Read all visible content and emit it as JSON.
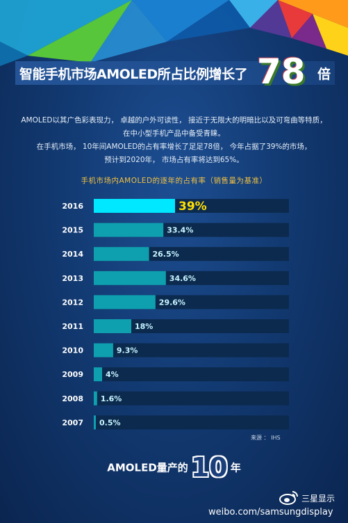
{
  "header": {
    "title_prefix": "智能手机市场AMOLED所占比例增长了",
    "title_number": "78",
    "title_suffix": "倍"
  },
  "intro_lines": [
    "AMOLED以其广色彩表现力， 卓越的户外可读性， 接近于无限大的明暗比以及可弯曲等特质，",
    "在中小型手机产品中备受青睐。",
    "在手机市场， 10年间AMOLED的占有率增长了足足78倍， 今年占据了39%的市场，",
    "预计到2020年， 市场占有率将达到65%。"
  ],
  "chart_data": {
    "type": "bar",
    "orientation": "horizontal",
    "title": "手机市场内AMOLED的逐年的占有率（销售量为基准）",
    "categories": [
      "2016",
      "2015",
      "2014",
      "2013",
      "2012",
      "2011",
      "2010",
      "2009",
      "2008",
      "2007"
    ],
    "values": [
      39,
      33.4,
      26.5,
      34.6,
      29.6,
      18,
      9.3,
      4,
      1.6,
      0.5
    ],
    "labels": [
      "39%",
      "33.4%",
      "26.5%",
      "34.6%",
      "29.6%",
      "18%",
      "9.3%",
      "4%",
      "1.6%",
      "0.5%"
    ],
    "xlim": [
      0,
      100
    ],
    "unit": "%",
    "highlight_index": 0,
    "colors": {
      "bar": "#0fa0b0",
      "highlight": "#00e8ff",
      "track": "#0c2a4e",
      "label": "#c8f6ff",
      "highlight_label": "#ffe000"
    }
  },
  "source": "来源 ： IHS",
  "footer": {
    "prefix": "AMOLED量产的",
    "number": "10",
    "suffix": "年"
  },
  "brand": {
    "name": "三星显示",
    "url": "weibo.com/samsungdisplay",
    "icon": "weibo-icon"
  }
}
